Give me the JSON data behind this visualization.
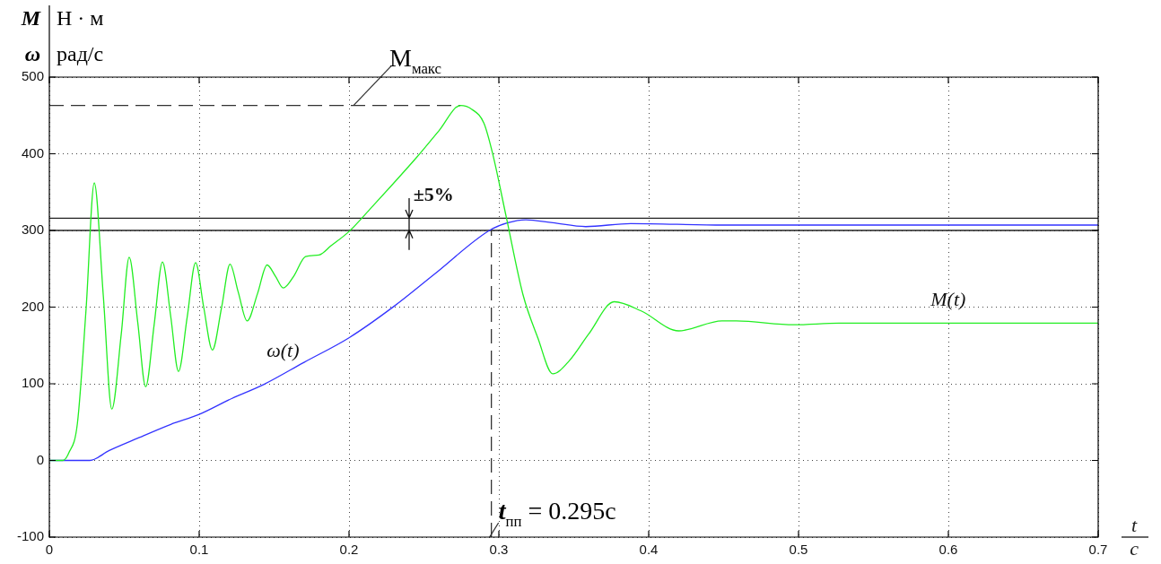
{
  "chart_data": {
    "type": "line",
    "ylabel": "M Н · м\nω рад/с",
    "xlabel": "t\nс",
    "xlim": [
      0,
      0.7
    ],
    "xticks": [
      0,
      0.1,
      0.2,
      0.3,
      0.4,
      0.5,
      0.6,
      0.7
    ],
    "ylim": [
      -100,
      500
    ],
    "yticks": [
      -100,
      0,
      100,
      200,
      300,
      400,
      500
    ],
    "grid": true,
    "line_style": "solid",
    "marker": "none",
    "series": [
      {
        "name": "M(t)",
        "color": "#22ee22",
        "x": [
          0,
          0.009,
          0.013,
          0.0187,
          0.0245,
          0.03,
          0.036,
          0.0417,
          0.048,
          0.0533,
          0.059,
          0.0643,
          0.07,
          0.0755,
          0.081,
          0.0862,
          0.092,
          0.0976,
          0.103,
          0.1088,
          0.115,
          0.1206,
          0.126,
          0.132,
          0.139,
          0.1453,
          0.151,
          0.1561,
          0.163,
          0.171,
          0.18,
          0.188,
          0.2002,
          0.215,
          0.229,
          0.245,
          0.26,
          0.2744,
          0.282,
          0.29,
          0.296,
          0.305,
          0.316,
          0.326,
          0.336,
          0.347,
          0.36,
          0.377,
          0.395,
          0.42,
          0.449,
          0.4585,
          0.497,
          0.527,
          0.6,
          0.7
        ],
        "values": [
          0,
          0,
          10,
          48,
          197,
          362,
          215,
          67,
          165,
          265,
          180,
          96,
          178,
          259,
          188,
          116,
          187,
          258,
          200,
          144,
          200,
          256,
          220,
          182,
          218,
          255,
          240,
          225,
          240,
          266,
          268,
          280,
          299,
          330,
          360,
          395,
          430,
          463,
          458,
          440,
          399,
          317,
          217,
          160,
          113,
          130,
          165,
          207,
          195,
          169,
          182,
          182,
          177,
          179,
          179,
          179
        ]
      },
      {
        "name": "ω(t)",
        "color": "#3333ff",
        "x": [
          0,
          0.027,
          0.04,
          0.059,
          0.081,
          0.1,
          0.122,
          0.143,
          0.17,
          0.2,
          0.23,
          0.257,
          0.2937,
          0.306,
          0.318,
          0.336,
          0.358,
          0.388,
          0.45,
          0.7
        ],
        "values": [
          0,
          0,
          13,
          29,
          47,
          60,
          81,
          99,
          128,
          160,
          201,
          243,
          300,
          310,
          314,
          310,
          305,
          309,
          307,
          307
        ]
      }
    ],
    "ref_lines": [
      {
        "axis": "y",
        "value": 463,
        "label": "M$_{макс}$",
        "line_style": "dashed",
        "color": "#333333"
      },
      {
        "axis": "x",
        "value": 0.295,
        "label": "t$_{пп}$ = 0.295с",
        "line_style": "dashed",
        "color": "#333333"
      },
      {
        "axis": "y",
        "value": 316,
        "line_style": "solid",
        "color": "#222222"
      },
      {
        "axis": "y",
        "value": 300,
        "line_style": "solid",
        "color": "#222222"
      }
    ],
    "annotations": [
      {
        "text": "±5%",
        "x": 0.24,
        "y": 316
      }
    ]
  }
}
